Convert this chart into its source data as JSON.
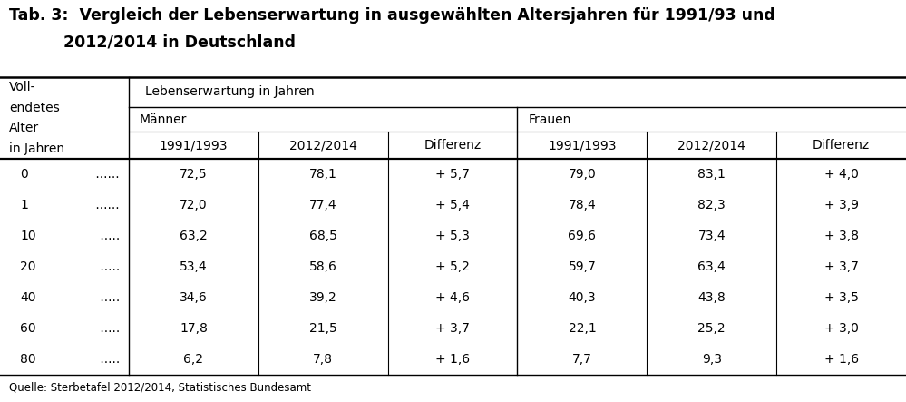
{
  "title_line1": "Tab. 3:  Vergleich der Lebenserwartung in ausgewählten Altersjahren für 1991/93 und",
  "title_line2": "2012/2014 in Deutschland",
  "source": "Quelle: Sterbetafel 2012/2014, Statistisches Bundesamt",
  "header_col0": [
    "Voll-",
    "endetes",
    "Alter",
    "in Jahren"
  ],
  "header_span": "Lebenserwartung in Jahren",
  "header_maenner": "Männer",
  "header_frauen": "Frauen",
  "col_headers": [
    "1991/1993",
    "2012/2014",
    "Differenz",
    "1991/1993",
    "2012/2014",
    "Differenz"
  ],
  "row_labels_num": [
    "0",
    "1",
    "10",
    "20",
    "40",
    "60",
    "80"
  ],
  "row_labels_dots": [
    " ......",
    " ......",
    " .....",
    " .....",
    " .....",
    " .....",
    " ....."
  ],
  "data": [
    [
      "72,5",
      "78,1",
      "+ 5,7",
      "79,0",
      "83,1",
      "+ 4,0"
    ],
    [
      "72,0",
      "77,4",
      "+ 5,4",
      "78,4",
      "82,3",
      "+ 3,9"
    ],
    [
      "63,2",
      "68,5",
      "+ 5,3",
      "69,6",
      "73,4",
      "+ 3,8"
    ],
    [
      "53,4",
      "58,6",
      "+ 5,2",
      "59,7",
      "63,4",
      "+ 3,7"
    ],
    [
      "34,6",
      "39,2",
      "+ 4,6",
      "40,3",
      "43,8",
      "+ 3,5"
    ],
    [
      "17,8",
      "21,5",
      "+ 3,7",
      "22,1",
      "25,2",
      "+ 3,0"
    ],
    [
      "6,2",
      "7,8",
      "+ 1,6",
      "7,7",
      "9,3",
      "+ 1,6"
    ]
  ],
  "bg_color": "#ffffff",
  "text_color": "#000000",
  "line_color": "#000000",
  "title_fontsize": 12.5,
  "header_fontsize": 10.0,
  "data_fontsize": 10.0,
  "source_fontsize": 8.5
}
